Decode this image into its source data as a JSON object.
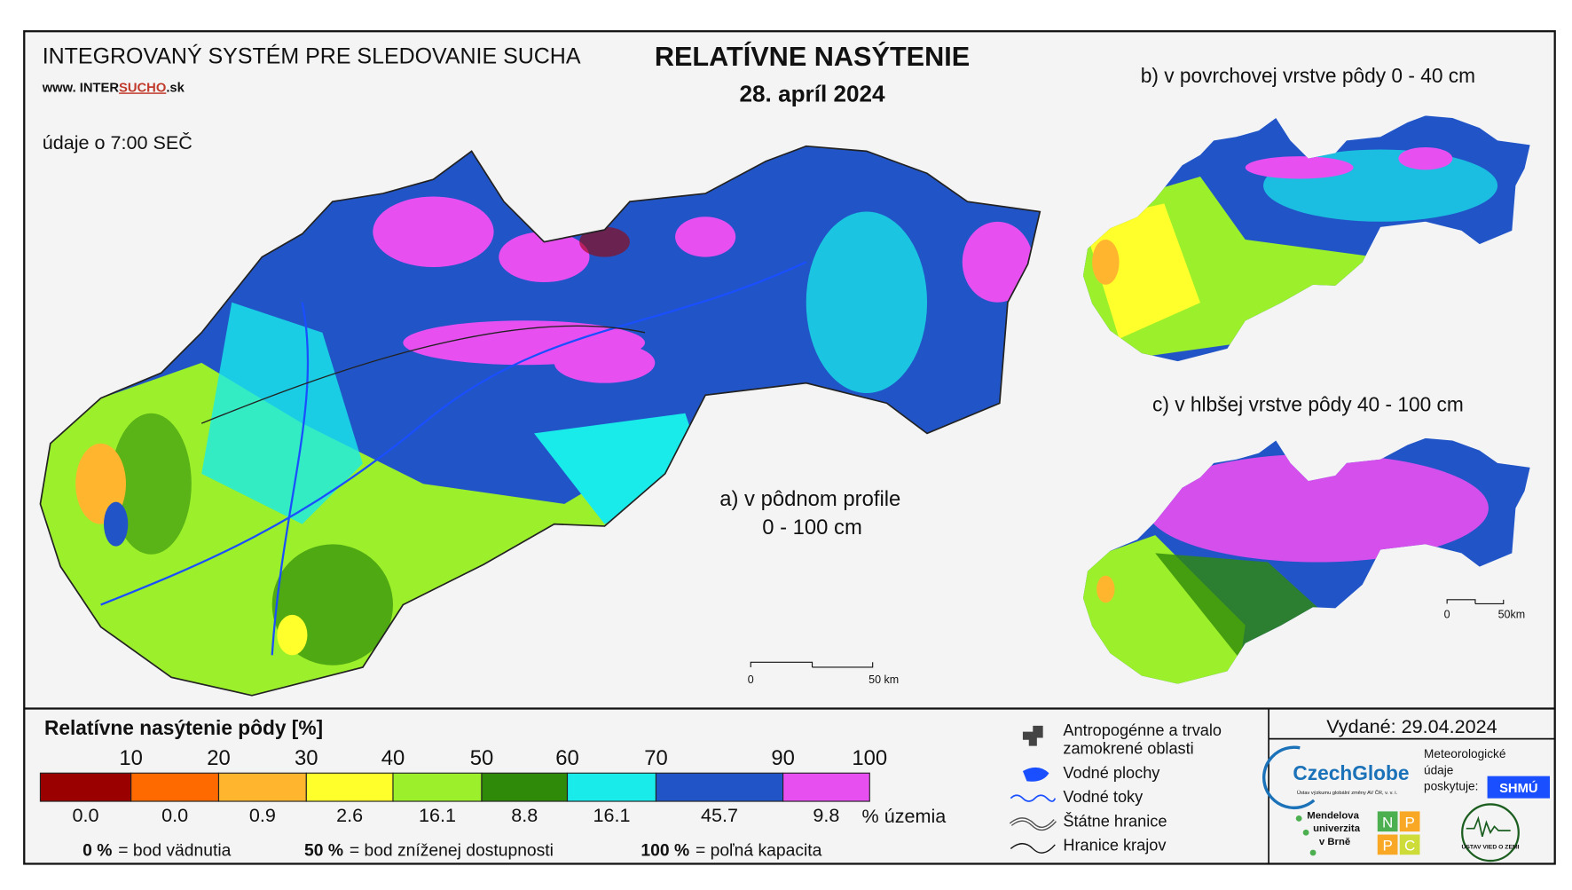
{
  "header": {
    "system_title": "INTEGROVANÝ SYSTÉM PRE SLEDOVANIE SUCHA",
    "url_prefix": "www. INTER",
    "url_highlight": "SUCHO",
    "url_suffix": ".sk",
    "time_note": "údaje o 7:00 SEČ",
    "main_title": "RELATÍVNE NASÝTENIE",
    "date": "28. apríl 2024"
  },
  "maps": {
    "a_label_line1": "a) v pôdnom profile",
    "a_label_line2": "0 - 100 cm",
    "b_label": "b) v povrchovej vrstve pôdy 0 - 40 cm",
    "c_label": "c) v hlbšej vrstve pôdy 40 - 100 cm",
    "scale_zero": "0",
    "scale_end": "50 km",
    "inset_scale_zero": "0",
    "inset_scale_end": "50km"
  },
  "legend": {
    "title": "Relatívne nasýtenie pôdy [%]",
    "boundaries": [
      10,
      20,
      30,
      40,
      50,
      60,
      70,
      90,
      100
    ],
    "bins": [
      {
        "color": "#9b0000",
        "share": "0.0"
      },
      {
        "color": "#ff6a00",
        "share": "0.0"
      },
      {
        "color": "#ffb62e",
        "share": "0.9"
      },
      {
        "color": "#ffff2b",
        "share": "2.6"
      },
      {
        "color": "#9cf02b",
        "share": "16.1"
      },
      {
        "color": "#2f8a0a",
        "share": "8.8"
      },
      {
        "color": "#19ebeb",
        "share": "16.1"
      },
      {
        "color": "#2155c7",
        "share": "45.7"
      },
      {
        "color": "#e84ff0",
        "share": "9.8"
      }
    ],
    "unit": "% územia",
    "notes": [
      {
        "value": "0 %",
        "text": "= bod vädnutia"
      },
      {
        "value": "50 %",
        "text": "= bod zníženej dostupnosti"
      },
      {
        "value": "100 %",
        "text": "= poľná kapacita"
      }
    ]
  },
  "symbols": {
    "anthropogenic_line1": "Antropogénne a trvalo",
    "anthropogenic_line2": "zamokrené oblasti",
    "water_bodies": "Vodné plochy",
    "water_streams": "Vodné toky",
    "state_border": "Štátne hranice",
    "regional_border": "Hranice krajov"
  },
  "footer": {
    "issued": "Vydané: 29.04.2024",
    "czechglobe": "CzechGlobe",
    "czechglobe_sub": "Ústav výzkumu globální změny AV ČR, v. v. i.",
    "met_line1": "Meteorologické",
    "met_line2": "údaje",
    "met_line3": "poskytuje:",
    "shmu": "SHMÚ",
    "mendel_line1": "Mendelova",
    "mendel_line2": "univerzita",
    "mendel_line3": "v Brně",
    "npp_n": "N",
    "npp_p1": "P",
    "npp_p2": "P",
    "npp_c": "C",
    "uvz": "ÚSTAV VIED O ZEMI"
  }
}
